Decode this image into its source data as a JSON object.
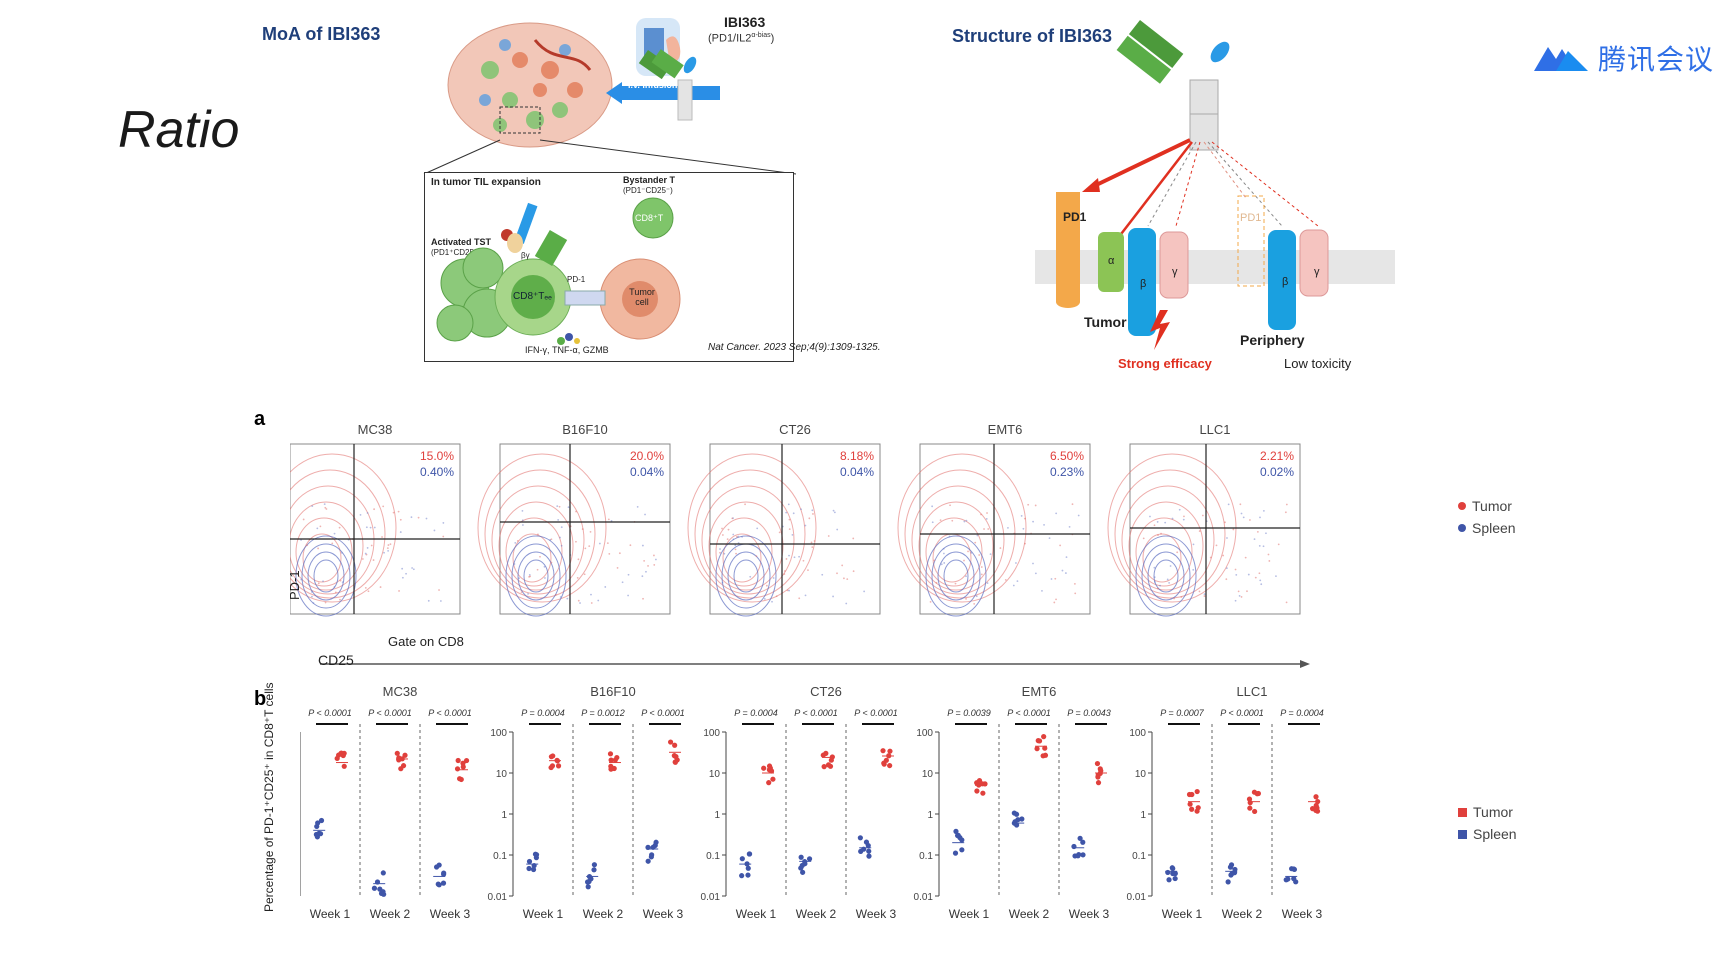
{
  "slide_title": "Ratio",
  "app_logo_text": "腾讯会议",
  "moa": {
    "header": "MoA of IBI363",
    "drug_label": "IBI363",
    "drug_sub": "(PD1/IL2",
    "drug_sup": "α-bias",
    "drug_close": ")",
    "infusion_label": "i.v. infusion",
    "til_title": "In tumor TIL expansion",
    "bystander_title": "Bystander T",
    "bystander_sub": "(PD1⁻CD25⁻)",
    "bystander_cell": "CD8⁺T",
    "activated_title": "Activated TST",
    "activated_sub": "(PD1⁺CD25⁺)",
    "cd8_label": "CD8⁺Tₑₑ",
    "pd1_label": "PD-1",
    "tumor_cell_label": "Tumor cell",
    "alpha_beta_label": "βγ",
    "cytokines": "IFN-γ, TNF-α, GZMB",
    "citation": "Nat Cancer. 2023 Sep;4(9):1309-1325."
  },
  "structure": {
    "header": "Structure of IBI363",
    "pd1": "PD1",
    "pd1_faded": "PD1",
    "alpha": "α",
    "beta": "β",
    "gamma": "γ",
    "tumor": "Tumor",
    "periphery": "Periphery",
    "strong": "Strong efficacy",
    "low": "Low toxicity"
  },
  "panel_a": {
    "letter": "a",
    "y_axis": "PD-1",
    "gate": "Gate on CD8",
    "x_axis": "CD25",
    "plots": [
      {
        "name": "MC38",
        "tumor_pct": "15.0%",
        "spleen_pct": "0.40%"
      },
      {
        "name": "B16F10",
        "tumor_pct": "20.0%",
        "spleen_pct": "0.04%"
      },
      {
        "name": "CT26",
        "tumor_pct": "8.18%",
        "spleen_pct": "0.04%"
      },
      {
        "name": "EMT6",
        "tumor_pct": "6.50%",
        "spleen_pct": "0.23%"
      },
      {
        "name": "LLC1",
        "tumor_pct": "2.21%",
        "spleen_pct": "0.02%"
      }
    ],
    "legend": [
      {
        "label": "Tumor",
        "color": "#e0403c"
      },
      {
        "label": "Spleen",
        "color": "#3f55a8"
      }
    ]
  },
  "panel_b": {
    "letter": "b",
    "y_axis": "Percentage of PD-1⁺CD25⁺ in CD8⁺T cells",
    "y_ticks": [
      "100",
      "10",
      "1",
      "0.1",
      "0.01"
    ],
    "weeks": [
      "Week 1",
      "Week 2",
      "Week 3"
    ],
    "groups": [
      {
        "name": "MC38",
        "p": [
          "P < 0.0001",
          "P < 0.0001",
          "P < 0.0001"
        ]
      },
      {
        "name": "B16F10",
        "p": [
          "P = 0.0004",
          "P = 0.0012",
          "P < 0.0001"
        ]
      },
      {
        "name": "CT26",
        "p": [
          "P = 0.0004",
          "P < 0.0001",
          "P < 0.0001"
        ]
      },
      {
        "name": "EMT6",
        "p": [
          "P = 0.0039",
          "P < 0.0001",
          "P = 0.0043"
        ]
      },
      {
        "name": "LLC1",
        "p": [
          "P = 0.0007",
          "P < 0.0001",
          "P = 0.0004"
        ]
      }
    ],
    "legend": [
      {
        "label": "Tumor",
        "color": "#e0403c"
      },
      {
        "label": "Spleen",
        "color": "#3f55a8"
      }
    ]
  }
}
